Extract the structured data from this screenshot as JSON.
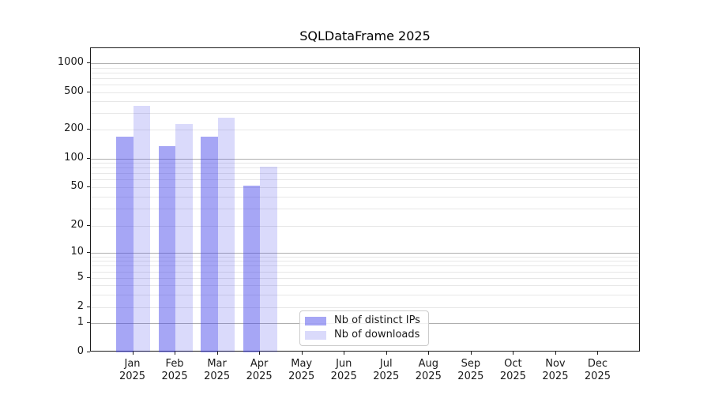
{
  "chart_data": {
    "type": "bar",
    "title": "SQLDataFrame 2025",
    "months": [
      "Jan",
      "Feb",
      "Mar",
      "Apr",
      "May",
      "Jun",
      "Jul",
      "Aug",
      "Sep",
      "Oct",
      "Nov",
      "Dec"
    ],
    "year_label": "2025",
    "series": [
      {
        "name": "Nb of distinct IPs",
        "color": "rgba(70,70,235,0.48)",
        "values": [
          170,
          135,
          170,
          52,
          0,
          0,
          0,
          0,
          0,
          0,
          0,
          0
        ]
      },
      {
        "name": "Nb of downloads",
        "color": "rgba(70,70,235,0.20)",
        "values": [
          360,
          230,
          270,
          82,
          0,
          0,
          0,
          0,
          0,
          0,
          0,
          0
        ]
      }
    ],
    "yscale": "symlog",
    "yticks": [
      0,
      1,
      2,
      5,
      10,
      20,
      50,
      100,
      200,
      500,
      1000
    ],
    "ylim": [
      0,
      1400
    ],
    "grid": true,
    "legend_position": "lower center",
    "colors": {
      "major_grid": "#afafaf",
      "minor_grid": "#e7e7e7",
      "spine": "#1c1c1c",
      "text": "#1a1a1a"
    }
  }
}
